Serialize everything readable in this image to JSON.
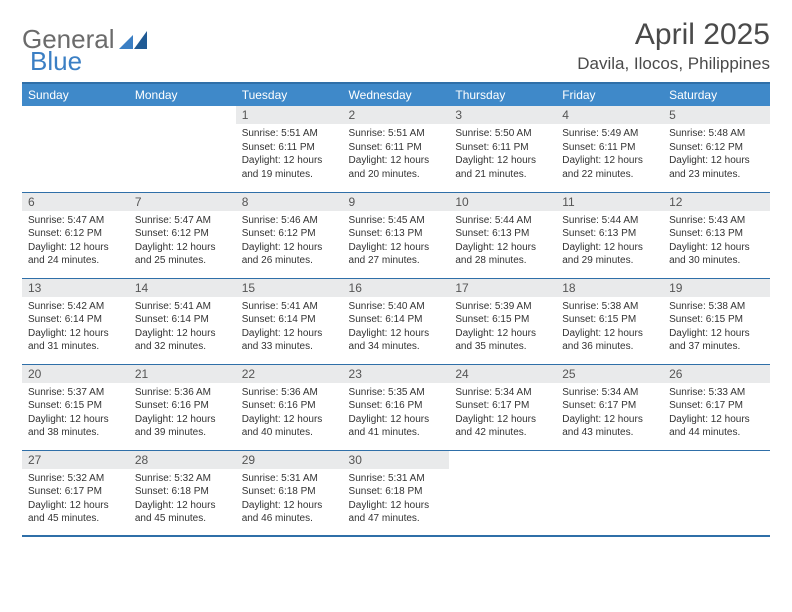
{
  "logo": {
    "word1": "General",
    "word2": "Blue"
  },
  "title": "April 2025",
  "location": "Davila, Ilocos, Philippines",
  "colors": {
    "header_bg": "#3f89c9",
    "header_text": "#ffffff",
    "border": "#2f6fa8",
    "daynum_bg": "#e9eaeb",
    "text": "#333333",
    "logo_gray": "#6b6b6b",
    "logo_blue": "#3b7fc4",
    "page_bg": "#ffffff"
  },
  "day_headers": [
    "Sunday",
    "Monday",
    "Tuesday",
    "Wednesday",
    "Thursday",
    "Friday",
    "Saturday"
  ],
  "weeks": [
    [
      {
        "empty": true
      },
      {
        "empty": true
      },
      {
        "num": "1",
        "sunrise": "5:51 AM",
        "sunset": "6:11 PM",
        "daylight": "12 hours and 19 minutes."
      },
      {
        "num": "2",
        "sunrise": "5:51 AM",
        "sunset": "6:11 PM",
        "daylight": "12 hours and 20 minutes."
      },
      {
        "num": "3",
        "sunrise": "5:50 AM",
        "sunset": "6:11 PM",
        "daylight": "12 hours and 21 minutes."
      },
      {
        "num": "4",
        "sunrise": "5:49 AM",
        "sunset": "6:11 PM",
        "daylight": "12 hours and 22 minutes."
      },
      {
        "num": "5",
        "sunrise": "5:48 AM",
        "sunset": "6:12 PM",
        "daylight": "12 hours and 23 minutes."
      }
    ],
    [
      {
        "num": "6",
        "sunrise": "5:47 AM",
        "sunset": "6:12 PM",
        "daylight": "12 hours and 24 minutes."
      },
      {
        "num": "7",
        "sunrise": "5:47 AM",
        "sunset": "6:12 PM",
        "daylight": "12 hours and 25 minutes."
      },
      {
        "num": "8",
        "sunrise": "5:46 AM",
        "sunset": "6:12 PM",
        "daylight": "12 hours and 26 minutes."
      },
      {
        "num": "9",
        "sunrise": "5:45 AM",
        "sunset": "6:13 PM",
        "daylight": "12 hours and 27 minutes."
      },
      {
        "num": "10",
        "sunrise": "5:44 AM",
        "sunset": "6:13 PM",
        "daylight": "12 hours and 28 minutes."
      },
      {
        "num": "11",
        "sunrise": "5:44 AM",
        "sunset": "6:13 PM",
        "daylight": "12 hours and 29 minutes."
      },
      {
        "num": "12",
        "sunrise": "5:43 AM",
        "sunset": "6:13 PM",
        "daylight": "12 hours and 30 minutes."
      }
    ],
    [
      {
        "num": "13",
        "sunrise": "5:42 AM",
        "sunset": "6:14 PM",
        "daylight": "12 hours and 31 minutes."
      },
      {
        "num": "14",
        "sunrise": "5:41 AM",
        "sunset": "6:14 PM",
        "daylight": "12 hours and 32 minutes."
      },
      {
        "num": "15",
        "sunrise": "5:41 AM",
        "sunset": "6:14 PM",
        "daylight": "12 hours and 33 minutes."
      },
      {
        "num": "16",
        "sunrise": "5:40 AM",
        "sunset": "6:14 PM",
        "daylight": "12 hours and 34 minutes."
      },
      {
        "num": "17",
        "sunrise": "5:39 AM",
        "sunset": "6:15 PM",
        "daylight": "12 hours and 35 minutes."
      },
      {
        "num": "18",
        "sunrise": "5:38 AM",
        "sunset": "6:15 PM",
        "daylight": "12 hours and 36 minutes."
      },
      {
        "num": "19",
        "sunrise": "5:38 AM",
        "sunset": "6:15 PM",
        "daylight": "12 hours and 37 minutes."
      }
    ],
    [
      {
        "num": "20",
        "sunrise": "5:37 AM",
        "sunset": "6:15 PM",
        "daylight": "12 hours and 38 minutes."
      },
      {
        "num": "21",
        "sunrise": "5:36 AM",
        "sunset": "6:16 PM",
        "daylight": "12 hours and 39 minutes."
      },
      {
        "num": "22",
        "sunrise": "5:36 AM",
        "sunset": "6:16 PM",
        "daylight": "12 hours and 40 minutes."
      },
      {
        "num": "23",
        "sunrise": "5:35 AM",
        "sunset": "6:16 PM",
        "daylight": "12 hours and 41 minutes."
      },
      {
        "num": "24",
        "sunrise": "5:34 AM",
        "sunset": "6:17 PM",
        "daylight": "12 hours and 42 minutes."
      },
      {
        "num": "25",
        "sunrise": "5:34 AM",
        "sunset": "6:17 PM",
        "daylight": "12 hours and 43 minutes."
      },
      {
        "num": "26",
        "sunrise": "5:33 AM",
        "sunset": "6:17 PM",
        "daylight": "12 hours and 44 minutes."
      }
    ],
    [
      {
        "num": "27",
        "sunrise": "5:32 AM",
        "sunset": "6:17 PM",
        "daylight": "12 hours and 45 minutes."
      },
      {
        "num": "28",
        "sunrise": "5:32 AM",
        "sunset": "6:18 PM",
        "daylight": "12 hours and 45 minutes."
      },
      {
        "num": "29",
        "sunrise": "5:31 AM",
        "sunset": "6:18 PM",
        "daylight": "12 hours and 46 minutes."
      },
      {
        "num": "30",
        "sunrise": "5:31 AM",
        "sunset": "6:18 PM",
        "daylight": "12 hours and 47 minutes."
      },
      {
        "empty": true
      },
      {
        "empty": true
      },
      {
        "empty": true
      }
    ]
  ],
  "labels": {
    "sunrise": "Sunrise: ",
    "sunset": "Sunset: ",
    "daylight": "Daylight: "
  }
}
